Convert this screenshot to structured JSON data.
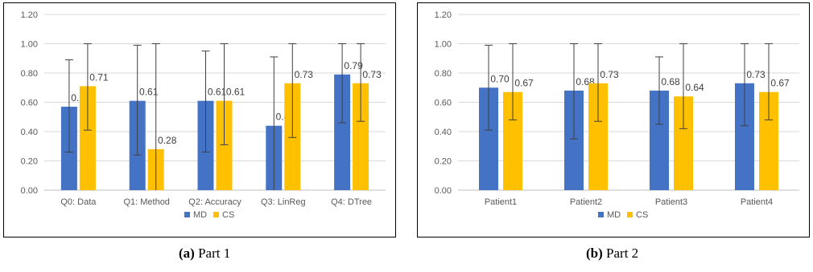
{
  "chart_data": [
    {
      "type": "bar",
      "caption_tag": "(a)",
      "caption_text": " Part 1",
      "categories": [
        "Q0: Data",
        "Q1: Method",
        "Q2: Accuracy",
        "Q3: LinReg",
        "Q4: DTree"
      ],
      "series": [
        {
          "name": "MD",
          "color": "#4472C4",
          "values": [
            0.57,
            0.61,
            0.61,
            0.44,
            0.79
          ],
          "labels": [
            "0.57",
            "0.61",
            "0.61",
            "0.44",
            "0.79"
          ],
          "err_low": [
            0.26,
            0.24,
            0.26,
            0.0,
            0.46
          ],
          "err_high": [
            0.89,
            0.99,
            0.95,
            0.91,
            1.0
          ]
        },
        {
          "name": "CS",
          "color": "#FFC000",
          "values": [
            0.71,
            0.28,
            0.61,
            0.73,
            0.73
          ],
          "labels": [
            "0.71",
            "0.28",
            "0.61",
            "0.73",
            "0.73"
          ],
          "err_low": [
            0.41,
            0.0,
            0.31,
            0.36,
            0.47
          ],
          "err_high": [
            1.0,
            1.0,
            1.0,
            1.0,
            1.0
          ]
        }
      ],
      "yticks": [
        "0.00",
        "0.20",
        "0.40",
        "0.60",
        "0.80",
        "1.00",
        "1.20"
      ],
      "ylim": [
        0,
        1.2
      ],
      "grid": true,
      "legend": "bottom"
    },
    {
      "type": "bar",
      "caption_tag": "(b)",
      "caption_text": " Part 2",
      "categories": [
        "Patient1",
        "Patient2",
        "Patient3",
        "Patient4"
      ],
      "series": [
        {
          "name": "MD",
          "color": "#4472C4",
          "values": [
            0.7,
            0.68,
            0.68,
            0.73
          ],
          "labels": [
            "0.70",
            "0.68",
            "0.68",
            "0.73"
          ],
          "err_low": [
            0.41,
            0.35,
            0.45,
            0.44
          ],
          "err_high": [
            0.99,
            1.0,
            0.91,
            1.0
          ]
        },
        {
          "name": "CS",
          "color": "#FFC000",
          "values": [
            0.67,
            0.73,
            0.64,
            0.67
          ],
          "labels": [
            "0.67",
            "0.73",
            "0.64",
            "0.67"
          ],
          "err_low": [
            0.48,
            0.47,
            0.42,
            0.48
          ],
          "err_high": [
            1.0,
            1.0,
            1.0,
            1.0
          ]
        }
      ],
      "yticks": [
        "0.00",
        "0.20",
        "0.40",
        "0.60",
        "0.80",
        "1.00",
        "1.20"
      ],
      "ylim": [
        0,
        1.2
      ],
      "grid": true,
      "legend": "bottom"
    }
  ]
}
